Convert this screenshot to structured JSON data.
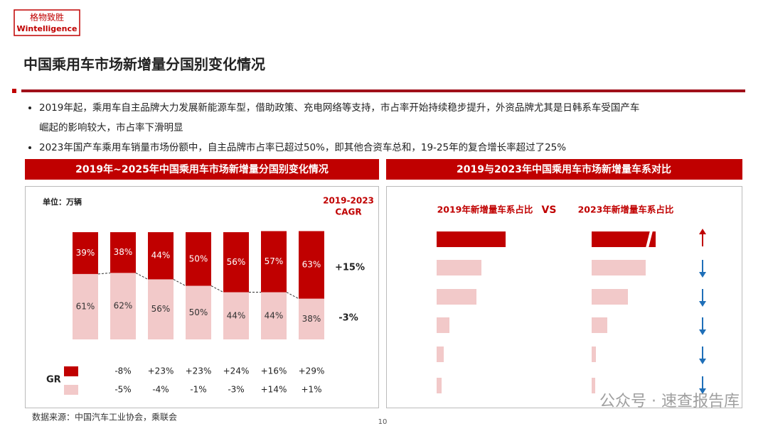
{
  "logo": {
    "cn": "格物致胜",
    "en": "Wintelligence"
  },
  "title": "中国乘用车市场新增量分国别变化情况",
  "bullets": [
    "2019年起，乘用车自主品牌大力发展新能源车型，借助政策、充电网络等支持，市占率开始持续稳步提升，外资品牌尤其是日韩系车受国产车",
    "崛起的影响较大，市占率下滑明显",
    "2023年国产车乘用车销量市场份额中，自主品牌市占率已超过50%，即其他合资车总和，19-25年的复合增长率超过了25%"
  ],
  "source": "数据来源：中国汽车工业协会，乘联会",
  "page_number": 10,
  "watermark": "公众号 · 速查报告库",
  "chart_data": [
    {
      "type": "stacked100",
      "title": "2019年~2025年中国乘用车市场新增量分国别变化情况",
      "unit_label": "单位：万辆",
      "categories": [
        null,
        null,
        null,
        null,
        null,
        null,
        null
      ],
      "series": [
        {
          "color": "#f2c9c9",
          "values": [
            61,
            62,
            56,
            50,
            44,
            44,
            38
          ],
          "value_labels": [
            "61%",
            "62%",
            "56%",
            "50%",
            "44%",
            "44%",
            "38%"
          ]
        },
        {
          "color": "#c00000",
          "values": [
            39,
            38,
            44,
            50,
            56,
            57,
            63
          ],
          "value_labels": [
            "39%",
            "38%",
            "44%",
            "50%",
            "56%",
            "57%",
            "63%"
          ]
        }
      ],
      "ylim": [
        0,
        100
      ],
      "cagr": {
        "title_lines": [
          "2019-2023",
          "CAGR"
        ],
        "labels": [
          "+15%",
          "-3%"
        ]
      },
      "gr": {
        "label": "GR",
        "rows": [
          [
            "-8%",
            "+23%",
            "+23%",
            "+24%",
            "+16%",
            "+29%"
          ],
          [
            "-5%",
            "-4%",
            "-1%",
            "-3%",
            "+14%",
            "+1%"
          ]
        ]
      }
    },
    {
      "type": "hbar",
      "title": "2019与2023年中国乘用车市场新增量车系对比",
      "vs_label": "VS",
      "xlim": [
        0,
        100
      ],
      "series": [
        {
          "name": "2019年新增量车系占比",
          "values": [
            97,
            63,
            56,
            18,
            10,
            7
          ],
          "colors": [
            "#c00000",
            "#f2c9c9",
            "#f2c9c9",
            "#f2c9c9",
            "#f2c9c9",
            "#f2c9c9"
          ]
        },
        {
          "name": "2023年新增量车系占比",
          "values": [
            90,
            76,
            51,
            22,
            6,
            5
          ],
          "colors": [
            "#c00000",
            "#f2c9c9",
            "#f2c9c9",
            "#f2c9c9",
            "#f2c9c9",
            "#f2c9c9"
          ]
        }
      ]
    }
  ]
}
